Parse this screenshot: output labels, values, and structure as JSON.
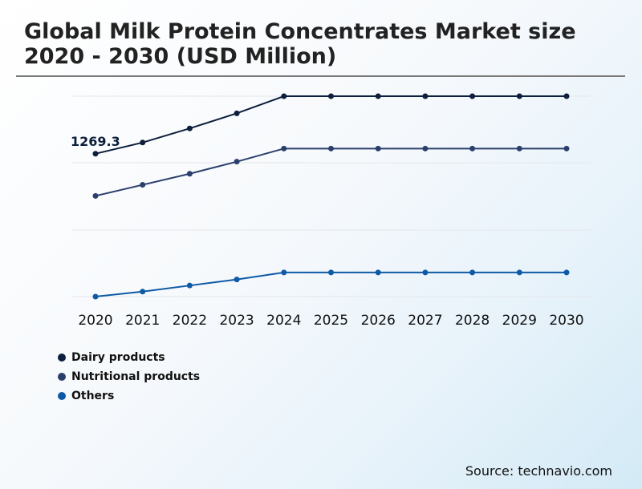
{
  "title": "Global Milk Protein Concentrates Market size 2020 - 2030 (USD Million)",
  "source": "Source: technavio.com",
  "chart_data": {
    "type": "line",
    "title": "Global Milk Protein Concentrates Market size 2020 - 2030 (USD Million)",
    "x": [
      "2020",
      "2021",
      "2022",
      "2023",
      "2024",
      "2025",
      "2026",
      "2027",
      "2028",
      "2029",
      "2030"
    ],
    "series": [
      {
        "name": "Dairy products",
        "color": "#0d1f3c",
        "values": [
          1269.3,
          1325,
          1395,
          1470,
          1555,
          1555,
          1555,
          1555,
          1555,
          1555,
          1555
        ]
      },
      {
        "name": "Nutritional products",
        "color": "#2b3f6c",
        "values": [
          1060,
          1115,
          1170,
          1230,
          1295,
          1295,
          1295,
          1295,
          1295,
          1295,
          1295
        ]
      },
      {
        "name": "Others",
        "color": "#0f5aa6",
        "values": [
          560,
          585,
          615,
          645,
          680,
          680,
          680,
          680,
          680,
          680,
          680
        ]
      }
    ],
    "annotations": [
      {
        "series": 0,
        "index": 0,
        "text": "1269.3"
      }
    ],
    "ylim": [
      560,
      1555
    ],
    "grid": true,
    "legend": "bottom-left"
  }
}
